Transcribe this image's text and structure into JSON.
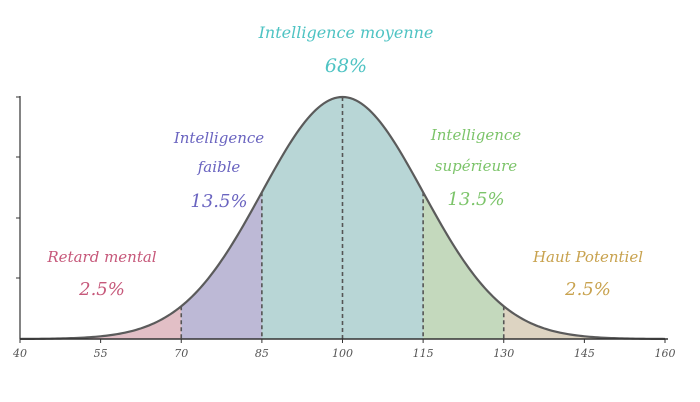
{
  "chart_data": {
    "type": "area",
    "title": "",
    "xlabel": "",
    "ylabel": "",
    "distribution": {
      "mean": 100,
      "sd": 15
    },
    "xlim": [
      40,
      160
    ],
    "x_ticks": [
      "40",
      "55",
      "70",
      "85",
      "100",
      "115",
      "130",
      "145",
      "160"
    ],
    "grid": false,
    "legend": "none",
    "bands": [
      {
        "from": 40,
        "to": 70,
        "label": "Retard mental",
        "percent": "2.5%",
        "color": "#e2bfc6",
        "text_color": "#c6587a"
      },
      {
        "from": 70,
        "to": 85,
        "label": "Intelligence faible",
        "percent": "13.5%",
        "color": "#bdb9d6",
        "text_color": "#6a64c0"
      },
      {
        "from": 85,
        "to": 115,
        "label": "Intelligence moyenne",
        "percent": "68%",
        "color": "#b8d6d6",
        "text_color": "#4ec3c3"
      },
      {
        "from": 115,
        "to": 130,
        "label": "Intelligence supérieure",
        "percent": "13.5%",
        "color": "#c4d9bd",
        "text_color": "#7cc46a"
      },
      {
        "from": 130,
        "to": 160,
        "label": "Haut Potentiel",
        "percent": "2.5%",
        "color": "#ddd4c2",
        "text_color": "#c8a24e"
      }
    ],
    "divider_lines_at": [
      70,
      85,
      100,
      115,
      130
    ],
    "curve_color": "#5b5b5b"
  }
}
